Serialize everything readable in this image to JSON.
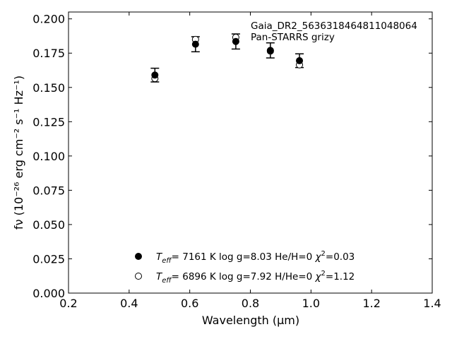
{
  "chart_data": {
    "type": "scatter",
    "xlabel": "Wavelength (μm)",
    "ylabel": "fν (10⁻²⁶ erg cm⁻² s⁻¹ Hz⁻¹)",
    "xlim": [
      0.2,
      1.4
    ],
    "ylim": [
      0.0,
      0.205
    ],
    "xticks": [
      "0.2",
      "0.4",
      "0.6",
      "0.8",
      "1.0",
      "1.2",
      "1.4"
    ],
    "yticks": [
      "0.000",
      "0.025",
      "0.050",
      "0.075",
      "0.100",
      "0.125",
      "0.150",
      "0.175",
      "0.200"
    ],
    "grid": false,
    "annotations": [
      "Gaia_DR2_5636318464811048064",
      "Pan-STARRS grizy"
    ],
    "observed": {
      "x": [
        0.485,
        0.619,
        0.752,
        0.866,
        0.962
      ],
      "y": [
        0.159,
        0.1815,
        0.1835,
        0.177,
        0.1695
      ],
      "yerr": [
        0.005,
        0.0055,
        0.0055,
        0.0055,
        0.005
      ]
    },
    "series": [
      {
        "marker": "filled-circle",
        "x": [
          0.485,
          0.619,
          0.752,
          0.866,
          0.962
        ],
        "y": [
          0.159,
          0.1815,
          0.1835,
          0.177,
          0.1695
        ]
      },
      {
        "marker": "open-circle",
        "x": [
          0.485,
          0.619,
          0.752,
          0.866,
          0.962
        ],
        "y": [
          0.1565,
          0.185,
          0.1865,
          0.1765,
          0.1665
        ]
      }
    ],
    "legend": {
      "placement": "bottom-center",
      "entries": [
        {
          "marker": "filled-circle",
          "teff_value": "7161",
          "logg": "8.03",
          "comp_label": "He/H=0",
          "chi2": "0.03"
        },
        {
          "marker": "open-circle",
          "teff_value": "6896",
          "logg": "7.92",
          "comp_label": "H/He=0",
          "chi2": "1.12"
        }
      ]
    }
  }
}
